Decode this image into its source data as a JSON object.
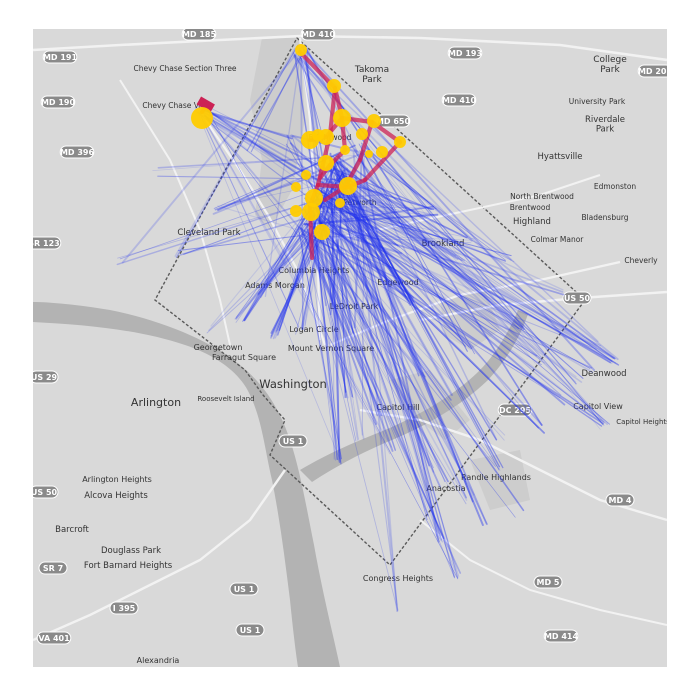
{
  "map": {
    "places": [
      {
        "id": "chevy-chase-section-three",
        "text": "Chevy Chase Section Three"
      },
      {
        "id": "chevy-chase-village",
        "text": "Chevy Chase Villa"
      },
      {
        "id": "takoma-park",
        "text": "Takoma\nPark"
      },
      {
        "id": "college-park",
        "text": "College\nPark"
      },
      {
        "id": "university-park",
        "text": "University Park"
      },
      {
        "id": "riverdale-park",
        "text": "Riverdale\nPark"
      },
      {
        "id": "hyattsville",
        "text": "Hyattsville"
      },
      {
        "id": "edmonston",
        "text": "Edmonston"
      },
      {
        "id": "north-brentwood",
        "text": "North Brentwood"
      },
      {
        "id": "brentwood",
        "text": "Brentwood"
      },
      {
        "id": "highland",
        "text": "Highland"
      },
      {
        "id": "bladensburg",
        "text": "Bladensburg"
      },
      {
        "id": "colmar-manor",
        "text": "Colmar Manor"
      },
      {
        "id": "cheverly",
        "text": "Cheverly"
      },
      {
        "id": "brookland",
        "text": "Brookland"
      },
      {
        "id": "edgewood",
        "text": "Edgewood"
      },
      {
        "id": "cleveland-park",
        "text": "Cleveland Park"
      },
      {
        "id": "columbia-heights",
        "text": "Columbia Heights"
      },
      {
        "id": "adams-morgan",
        "text": "Adams Morgan"
      },
      {
        "id": "ledroit-park",
        "text": "LeDroit Park"
      },
      {
        "id": "logan-circle",
        "text": "Logan Circle"
      },
      {
        "id": "georgetown",
        "text": "Georgetown"
      },
      {
        "id": "farragut-square",
        "text": "Farragut Square"
      },
      {
        "id": "mount-vernon-square",
        "text": "Mount Vernon Square"
      },
      {
        "id": "washington",
        "text": "Washington"
      },
      {
        "id": "arlington",
        "text": "Arlington"
      },
      {
        "id": "theodore-roosevelt-island",
        "text": "Roosevelt Island"
      },
      {
        "id": "capitol-hill",
        "text": "Capitol Hill"
      },
      {
        "id": "deanwood",
        "text": "Deanwood"
      },
      {
        "id": "capitol-view",
        "text": "Capitol View"
      },
      {
        "id": "capitol-heights",
        "text": "Capitol Heights"
      },
      {
        "id": "randle-highlands",
        "text": "Randle Highlands"
      },
      {
        "id": "anacostia",
        "text": "Anacostia"
      },
      {
        "id": "arlington-heights",
        "text": "Arlington Heights"
      },
      {
        "id": "alcova-heights",
        "text": "Alcova Heights"
      },
      {
        "id": "barcroft",
        "text": "Barcroft"
      },
      {
        "id": "douglass-park",
        "text": "Douglass Park"
      },
      {
        "id": "fort-barnard-heights",
        "text": "Fort Barnard Heights"
      },
      {
        "id": "congress-heights",
        "text": "Congress Heights"
      },
      {
        "id": "alexandria",
        "text": "Alexandria"
      },
      {
        "id": "petworth",
        "text": "Petworth"
      },
      {
        "id": "brightwood",
        "text": "Brightwood"
      }
    ],
    "shields": [
      {
        "id": "md-185",
        "text": "MD 185"
      },
      {
        "id": "md-410-top",
        "text": "MD 410"
      },
      {
        "id": "md-193",
        "text": "MD 193"
      },
      {
        "id": "md-201",
        "text": "MD 201"
      },
      {
        "id": "md-191",
        "text": "MD 191"
      },
      {
        "id": "md-190",
        "text": "MD 190"
      },
      {
        "id": "md-410-mid",
        "text": "MD 410"
      },
      {
        "id": "md-650",
        "text": "MD 650"
      },
      {
        "id": "md-396",
        "text": "MD 396"
      },
      {
        "id": "sr-123",
        "text": "SR 123"
      },
      {
        "id": "us-50-east",
        "text": "US 50"
      },
      {
        "id": "us-29",
        "text": "US 29"
      },
      {
        "id": "dc-295",
        "text": "DC 295"
      },
      {
        "id": "us-1-mid",
        "text": "US 1"
      },
      {
        "id": "us-50-west",
        "text": "US 50"
      },
      {
        "id": "md-4",
        "text": "MD 4"
      },
      {
        "id": "sr-7",
        "text": "SR 7"
      },
      {
        "id": "i-395",
        "text": "I 395"
      },
      {
        "id": "us-1-south",
        "text": "US 1"
      },
      {
        "id": "md-5",
        "text": "MD 5"
      },
      {
        "id": "va-401",
        "text": "VA 401"
      },
      {
        "id": "us-1-bottom",
        "text": "US 1"
      },
      {
        "id": "md-414",
        "text": "MD 414"
      }
    ],
    "colors": {
      "basemap": "#d9d9d9",
      "water": "#b3b3b3",
      "roads": "#f2f2f2",
      "park": "#c9c9c9",
      "boundary": "#5a5a5a",
      "trip_lines": "#2233ee",
      "cluster_edges": "#cc2255",
      "stations": "#ffcc00"
    }
  }
}
